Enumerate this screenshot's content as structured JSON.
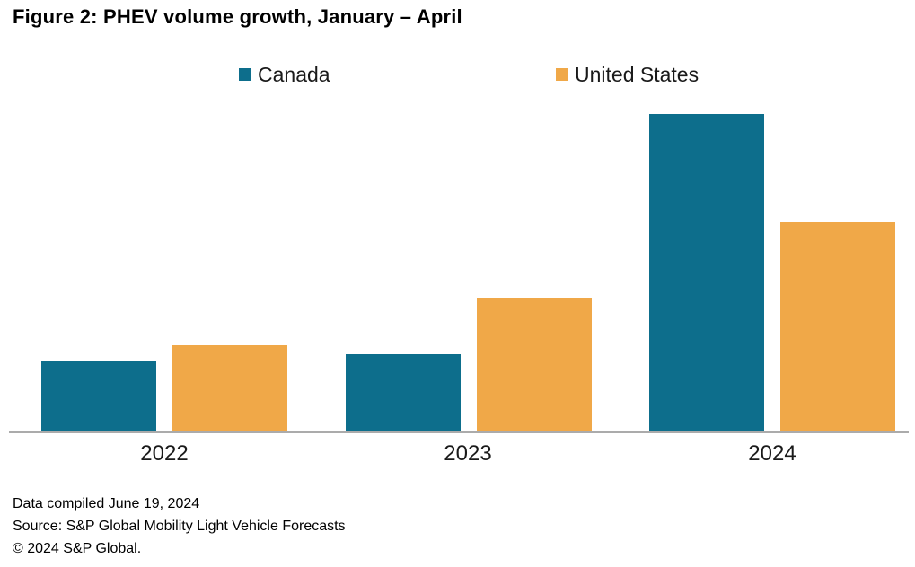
{
  "figure": {
    "title": "Figure 2: PHEV volume growth, January – April"
  },
  "chart_data": {
    "type": "bar",
    "title": "Figure 2: PHEV volume growth, January – April",
    "categories": [
      "2022",
      "2023",
      "2024"
    ],
    "series": [
      {
        "name": "Canada",
        "color": "#0d6e8c",
        "values": [
          22,
          24,
          100
        ]
      },
      {
        "name": "United States",
        "color": "#f0a848",
        "values": [
          27,
          42,
          66
        ]
      }
    ],
    "value_axis_note": "No value axis shown; values are relative units with tallest bar (Canada 2024) = 100",
    "ylim": [
      0,
      100
    ],
    "grid": false,
    "legend_position": "top"
  },
  "footer": {
    "line1": "Data compiled June 19, 2024",
    "line2": "Source: S&P Global Mobility Light Vehicle Forecasts",
    "line3": "© 2024 S&P Global."
  },
  "colors": {
    "canada": "#0d6e8c",
    "united_states": "#f0a848",
    "axis_line": "#ababab",
    "text": "#000000"
  }
}
